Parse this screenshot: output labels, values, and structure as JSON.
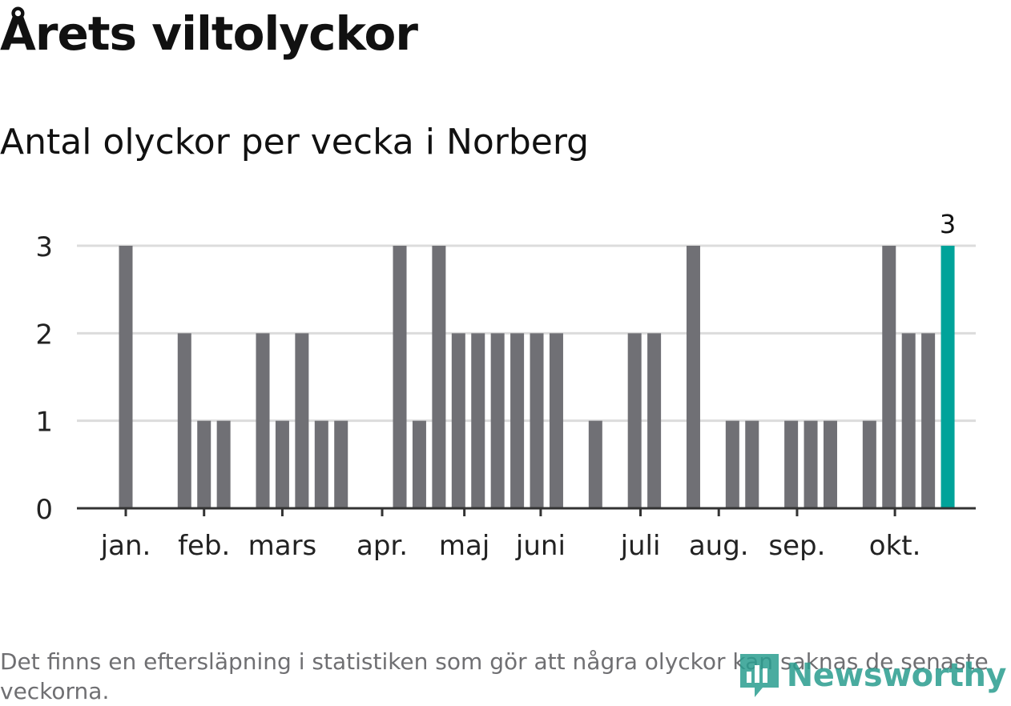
{
  "title": "Årets viltolyckor",
  "subtitle": "Antal olyckor per vecka i Norberg",
  "note": "Det finns en eftersläpning i statistiken som gör att några olyckor kan saknas de senaste veckorna.",
  "logo": {
    "text": "Newsworthy",
    "icon": "bar-chart-logo-icon",
    "color": "#2a9d8f"
  },
  "colors": {
    "bar": "#707075",
    "highlight": "#00a39a",
    "grid": "#dcdcdc",
    "axis": "#333333"
  },
  "chart_data": {
    "type": "bar",
    "title": "Antal olyckor per vecka i Norberg",
    "xlabel": "",
    "ylabel": "",
    "ylim": [
      0,
      3
    ],
    "yticks": [
      0,
      1,
      2,
      3
    ],
    "weeks": [
      1,
      2,
      3,
      4,
      5,
      6,
      7,
      8,
      9,
      10,
      11,
      12,
      13,
      14,
      15,
      16,
      17,
      18,
      19,
      20,
      21,
      22,
      23,
      24,
      25,
      26,
      27,
      28,
      29,
      30,
      31,
      32,
      33,
      34,
      35,
      36,
      37,
      38,
      39,
      40,
      41,
      42,
      43
    ],
    "values": [
      3,
      0,
      0,
      2,
      1,
      1,
      0,
      2,
      1,
      2,
      1,
      1,
      0,
      0,
      3,
      1,
      3,
      2,
      2,
      2,
      2,
      2,
      2,
      0,
      1,
      0,
      2,
      2,
      0,
      3,
      0,
      1,
      1,
      0,
      1,
      1,
      1,
      0,
      1,
      3,
      2,
      2,
      3
    ],
    "highlight_index": 42,
    "highlight_label": "3",
    "month_ticks": [
      {
        "label": "jan.",
        "week": 1
      },
      {
        "label": "feb.",
        "week": 5
      },
      {
        "label": "mars",
        "week": 9
      },
      {
        "label": "apr.",
        "week": 14.1
      },
      {
        "label": "maj",
        "week": 18.3
      },
      {
        "label": "juni",
        "week": 22.2
      },
      {
        "label": "juli",
        "week": 27.3
      },
      {
        "label": "aug.",
        "week": 31.3
      },
      {
        "label": "sep.",
        "week": 35.3
      },
      {
        "label": "okt.",
        "week": 40.3
      }
    ]
  }
}
